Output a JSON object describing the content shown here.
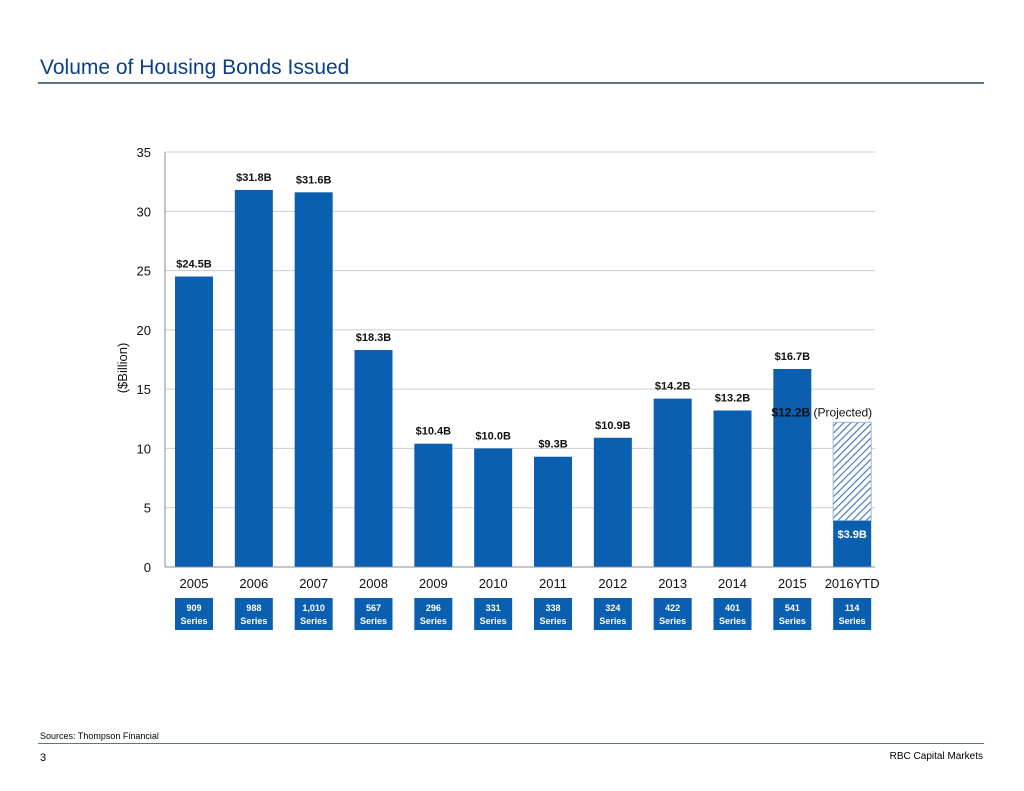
{
  "page": {
    "title": "Volume of Housing Bonds Issued",
    "source": "Sources: Thompson Financial",
    "page_number": "3",
    "brand": "RBC Capital Markets"
  },
  "colors": {
    "bar": "#0b5fb0",
    "series_box": "#0b5fb0",
    "title": "#0b3f8a",
    "grid": "#c8ccd2",
    "axis": "#8a8f96",
    "hatch": "#3d6fb8"
  },
  "chart_data": {
    "type": "bar",
    "title": "Volume of Housing Bonds Issued",
    "xlabel": "",
    "ylabel": "($Billion)",
    "ylim": [
      0,
      35
    ],
    "yticks": [
      0,
      5,
      10,
      15,
      20,
      25,
      30,
      35
    ],
    "grid": true,
    "categories": [
      "2005",
      "2006",
      "2007",
      "2008",
      "2009",
      "2010",
      "2011",
      "2012",
      "2013",
      "2014",
      "2015",
      "2016YTD"
    ],
    "values": [
      24.5,
      31.8,
      31.6,
      18.3,
      10.4,
      10.0,
      9.3,
      10.9,
      14.2,
      13.2,
      16.7,
      3.9
    ],
    "labels": [
      "$24.5B",
      "$31.8B",
      "$31.6B",
      "$18.3B",
      "$10.4B",
      "$10.0B",
      "$9.3B",
      "$10.9B",
      "$14.2B",
      "$13.2B",
      "$16.7B",
      "$3.9B"
    ],
    "projected": {
      "category": "2016YTD",
      "value": 12.2,
      "label_value": "$12.2B",
      "label_note": "(Projected)"
    },
    "series_counts": [
      "909",
      "988",
      "1,010",
      "567",
      "296",
      "331",
      "338",
      "324",
      "422",
      "401",
      "541",
      "114"
    ],
    "series_word": "Series"
  }
}
